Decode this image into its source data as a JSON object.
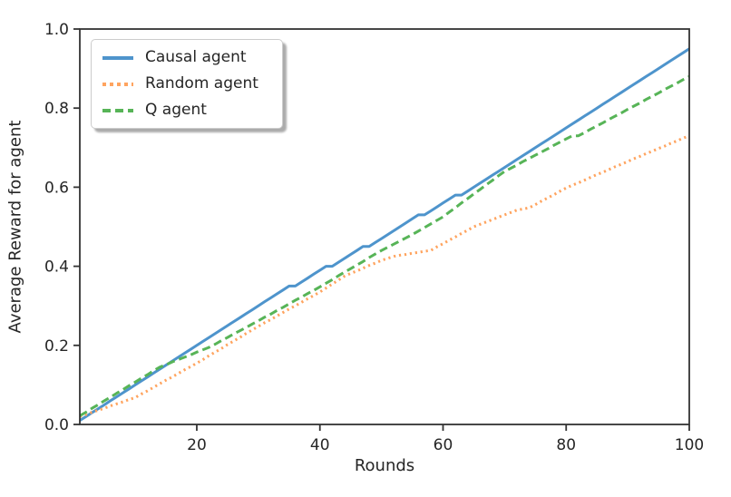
{
  "chart_data": {
    "type": "line",
    "title": "",
    "xlabel": "Rounds",
    "ylabel": "Average Reward for agent",
    "xlim": [
      1,
      100
    ],
    "ylim": [
      0.0,
      1.0
    ],
    "xticks": [
      20,
      40,
      60,
      80,
      100
    ],
    "yticks": [
      {
        "label": "0.0",
        "value": 0.0
      },
      {
        "label": "0.2",
        "value": 0.2
      },
      {
        "label": "0.4",
        "value": 0.4
      },
      {
        "label": "0.6",
        "value": 0.6
      },
      {
        "label": "0.8",
        "value": 0.8
      },
      {
        "label": "1.0",
        "value": 1.0
      }
    ],
    "grid": false,
    "legend_position": "upper left",
    "axis_color": "#333333",
    "text_color": "#262626",
    "x": [
      1,
      2,
      3,
      4,
      5,
      6,
      7,
      8,
      9,
      10,
      11,
      12,
      13,
      14,
      15,
      16,
      17,
      18,
      19,
      20,
      21,
      22,
      23,
      24,
      25,
      26,
      27,
      28,
      29,
      30,
      31,
      32,
      33,
      34,
      35,
      36,
      37,
      38,
      39,
      40,
      41,
      42,
      43,
      44,
      45,
      46,
      47,
      48,
      49,
      50,
      51,
      52,
      53,
      54,
      55,
      56,
      57,
      58,
      59,
      60,
      61,
      62,
      63,
      64,
      65,
      66,
      67,
      68,
      69,
      70,
      71,
      72,
      73,
      74,
      75,
      76,
      77,
      78,
      79,
      80,
      81,
      82,
      83,
      84,
      85,
      86,
      87,
      88,
      89,
      90,
      91,
      92,
      93,
      94,
      95,
      96,
      97,
      98,
      99,
      100
    ],
    "series": [
      {
        "name": "Causal agent",
        "color": "#4e94cc",
        "style": "solid",
        "values": [
          0.01,
          0.02,
          0.03,
          0.04,
          0.05,
          0.06,
          0.07,
          0.08,
          0.09,
          0.1,
          0.11,
          0.12,
          0.13,
          0.14,
          0.15,
          0.16,
          0.17,
          0.18,
          0.19,
          0.2,
          0.21,
          0.22,
          0.23,
          0.24,
          0.25,
          0.26,
          0.27,
          0.28,
          0.29,
          0.3,
          0.31,
          0.32,
          0.33,
          0.34,
          0.35,
          0.35,
          0.36,
          0.37,
          0.38,
          0.39,
          0.4,
          0.4,
          0.41,
          0.42,
          0.43,
          0.44,
          0.45,
          0.45,
          0.46,
          0.47,
          0.48,
          0.49,
          0.5,
          0.51,
          0.52,
          0.53,
          0.53,
          0.54,
          0.55,
          0.56,
          0.57,
          0.58,
          0.58,
          0.59,
          0.6,
          0.61,
          0.62,
          0.63,
          0.64,
          0.65,
          0.66,
          0.67,
          0.68,
          0.69,
          0.7,
          0.71,
          0.72,
          0.73,
          0.74,
          0.75,
          0.76,
          0.77,
          0.78,
          0.79,
          0.8,
          0.81,
          0.82,
          0.83,
          0.84,
          0.85,
          0.86,
          0.87,
          0.88,
          0.89,
          0.9,
          0.91,
          0.92,
          0.93,
          0.94,
          0.95
        ]
      },
      {
        "name": "Random agent",
        "color": "#ffa45f",
        "style": "dotted",
        "values": [
          0.02,
          0.025,
          0.031,
          0.036,
          0.041,
          0.047,
          0.052,
          0.057,
          0.063,
          0.068,
          0.077,
          0.085,
          0.094,
          0.103,
          0.112,
          0.12,
          0.129,
          0.138,
          0.146,
          0.155,
          0.164,
          0.174,
          0.183,
          0.192,
          0.202,
          0.211,
          0.22,
          0.23,
          0.239,
          0.248,
          0.257,
          0.265,
          0.274,
          0.283,
          0.292,
          0.3,
          0.309,
          0.318,
          0.326,
          0.335,
          0.345,
          0.355,
          0.365,
          0.375,
          0.382,
          0.388,
          0.395,
          0.402,
          0.408,
          0.415,
          0.42,
          0.425,
          0.428,
          0.43,
          0.433,
          0.435,
          0.438,
          0.44,
          0.449,
          0.457,
          0.466,
          0.474,
          0.483,
          0.491,
          0.5,
          0.506,
          0.512,
          0.518,
          0.524,
          0.53,
          0.536,
          0.542,
          0.545,
          0.548,
          0.556,
          0.565,
          0.573,
          0.581,
          0.59,
          0.598,
          0.605,
          0.611,
          0.618,
          0.625,
          0.632,
          0.638,
          0.645,
          0.652,
          0.658,
          0.665,
          0.672,
          0.678,
          0.685,
          0.691,
          0.698,
          0.704,
          0.711,
          0.717,
          0.724,
          0.73
        ]
      },
      {
        "name": "Q agent",
        "color": "#57b457",
        "style": "dashed",
        "values": [
          0.022,
          0.031,
          0.041,
          0.05,
          0.06,
          0.069,
          0.079,
          0.088,
          0.098,
          0.107,
          0.117,
          0.126,
          0.136,
          0.145,
          0.151,
          0.158,
          0.164,
          0.17,
          0.176,
          0.183,
          0.189,
          0.195,
          0.203,
          0.212,
          0.22,
          0.229,
          0.237,
          0.245,
          0.254,
          0.262,
          0.271,
          0.279,
          0.288,
          0.296,
          0.305,
          0.314,
          0.322,
          0.331,
          0.339,
          0.348,
          0.357,
          0.366,
          0.376,
          0.385,
          0.394,
          0.403,
          0.412,
          0.422,
          0.431,
          0.44,
          0.448,
          0.456,
          0.464,
          0.472,
          0.48,
          0.489,
          0.498,
          0.507,
          0.516,
          0.525,
          0.537,
          0.548,
          0.56,
          0.571,
          0.583,
          0.594,
          0.606,
          0.617,
          0.629,
          0.64,
          0.648,
          0.656,
          0.665,
          0.673,
          0.681,
          0.689,
          0.697,
          0.706,
          0.714,
          0.722,
          0.73,
          0.73,
          0.738,
          0.747,
          0.755,
          0.763,
          0.772,
          0.78,
          0.788,
          0.797,
          0.805,
          0.813,
          0.822,
          0.83,
          0.838,
          0.847,
          0.855,
          0.863,
          0.872,
          0.88
        ]
      }
    ]
  }
}
